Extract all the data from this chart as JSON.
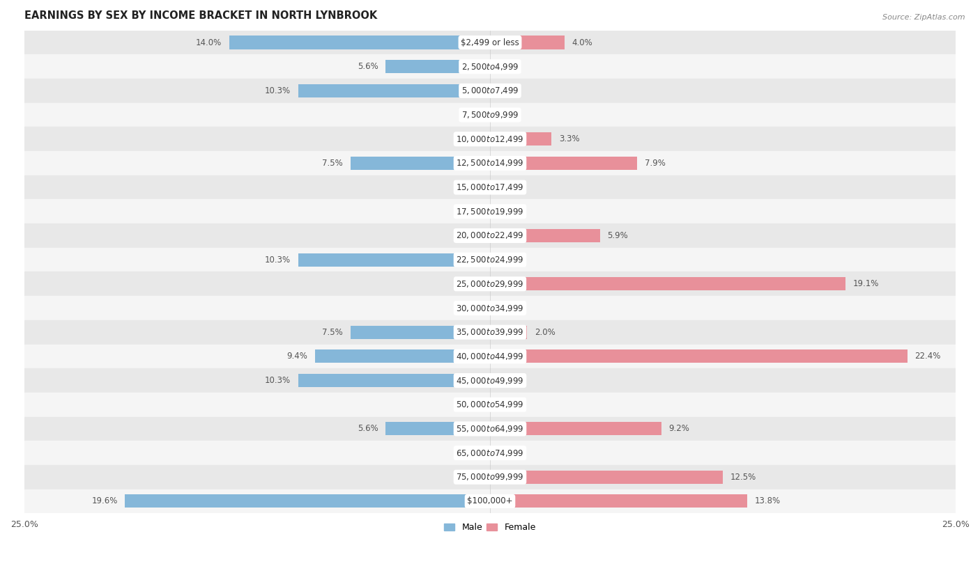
{
  "title": "EARNINGS BY SEX BY INCOME BRACKET IN NORTH LYNBROOK",
  "source": "Source: ZipAtlas.com",
  "categories": [
    "$2,499 or less",
    "$2,500 to $4,999",
    "$5,000 to $7,499",
    "$7,500 to $9,999",
    "$10,000 to $12,499",
    "$12,500 to $14,999",
    "$15,000 to $17,499",
    "$17,500 to $19,999",
    "$20,000 to $22,499",
    "$22,500 to $24,999",
    "$25,000 to $29,999",
    "$30,000 to $34,999",
    "$35,000 to $39,999",
    "$40,000 to $44,999",
    "$45,000 to $49,999",
    "$50,000 to $54,999",
    "$55,000 to $64,999",
    "$65,000 to $74,999",
    "$75,000 to $99,999",
    "$100,000+"
  ],
  "male_values": [
    14.0,
    5.6,
    10.3,
    0.0,
    0.0,
    7.5,
    0.0,
    0.0,
    0.0,
    10.3,
    0.0,
    0.0,
    7.5,
    9.4,
    10.3,
    0.0,
    5.6,
    0.0,
    0.0,
    19.6
  ],
  "female_values": [
    4.0,
    0.0,
    0.0,
    0.0,
    3.3,
    7.9,
    0.0,
    0.0,
    5.9,
    0.0,
    19.1,
    0.0,
    2.0,
    22.4,
    0.0,
    0.0,
    9.2,
    0.0,
    12.5,
    13.8
  ],
  "male_color": "#85b7d9",
  "female_color": "#e8909a",
  "xlim": 25.0,
  "bar_height": 0.55,
  "bg_color_odd": "#e8e8e8",
  "bg_color_even": "#f5f5f5",
  "label_fontsize": 8.5,
  "title_fontsize": 10.5,
  "axis_label_fontsize": 9
}
